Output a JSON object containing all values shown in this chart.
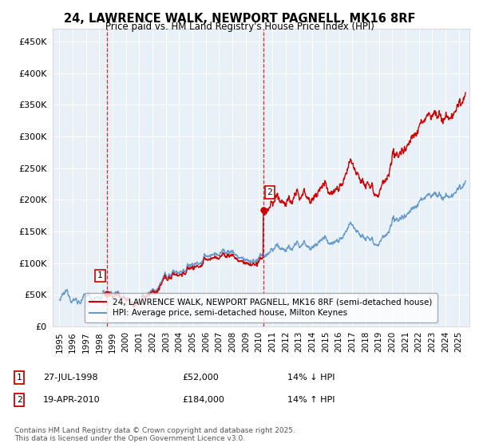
{
  "title_line1": "24, LAWRENCE WALK, NEWPORT PAGNELL, MK16 8RF",
  "title_line2": "Price paid vs. HM Land Registry's House Price Index (HPI)",
  "legend_line1": "24, LAWRENCE WALK, NEWPORT PAGNELL, MK16 8RF (semi-detached house)",
  "legend_line2": "HPI: Average price, semi-detached house, Milton Keynes",
  "footer": "Contains HM Land Registry data © Crown copyright and database right 2025.\nThis data is licensed under the Open Government Licence v3.0.",
  "sale1_date": "27-JUL-1998",
  "sale1_price": 52000,
  "sale1_label": "14% ↓ HPI",
  "sale2_date": "19-APR-2010",
  "sale2_price": 184000,
  "sale2_label": "14% ↑ HPI",
  "sale1_year": 1998.57,
  "sale2_year": 2010.3,
  "ylim": [
    0,
    470000
  ],
  "yticks": [
    0,
    50000,
    100000,
    150000,
    200000,
    250000,
    300000,
    350000,
    400000,
    450000
  ],
  "color_red": "#cc0000",
  "color_blue": "#6699cc",
  "color_dashed": "#cc0000",
  "bg_color": "#ffffff",
  "plot_bg_color": "#e8f0f8",
  "grid_color": "#ffffff"
}
